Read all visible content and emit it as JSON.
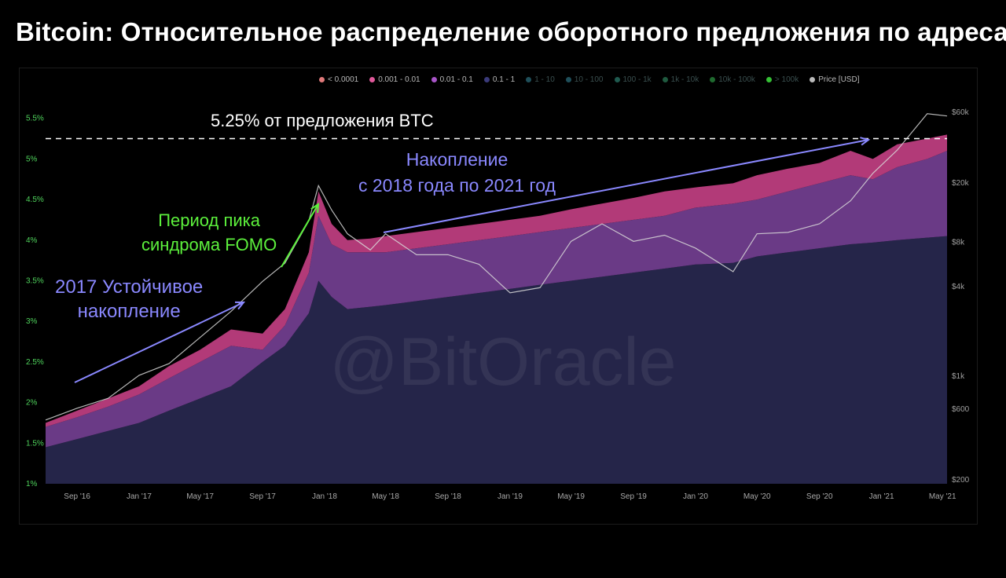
{
  "title": "Bitcoin: Относительное распределение оборотного предложения по адресам",
  "watermark": "@BitOracle",
  "legend": [
    {
      "label": "< 0.0001",
      "color": "#e0797a",
      "dim": false
    },
    {
      "label": "0.001 - 0.01",
      "color": "#e0589a",
      "dim": false
    },
    {
      "label": "0.01 - 0.1",
      "color": "#a855c8",
      "dim": false
    },
    {
      "label": "0.1 - 1",
      "color": "#3a3a7a",
      "dim": false
    },
    {
      "label": "1 - 10",
      "color": "#1f4f5a",
      "dim": true
    },
    {
      "label": "10 - 100",
      "color": "#1f4f5a",
      "dim": true
    },
    {
      "label": "100 - 1k",
      "color": "#1f5a4f",
      "dim": true
    },
    {
      "label": "1k - 10k",
      "color": "#1f5a3f",
      "dim": true
    },
    {
      "label": "10k - 100k",
      "color": "#1f6a2f",
      "dim": true
    },
    {
      "label": "> 100k",
      "color": "#35c035",
      "dim": true
    },
    {
      "label": "Price [USD]",
      "color": "#bbbbbb",
      "dim": false
    }
  ],
  "annotations": {
    "line_label": "5.25% от предложения BTC",
    "accum_2017_line1": "2017 Устойчивое",
    "accum_2017_line2": "накопление",
    "fomo_line1": "Период пика",
    "fomo_line2": "синдрома FOMO",
    "accum_2018_line1": "Накопление",
    "accum_2018_line2": "с 2018 года по 2021 год"
  },
  "colors": {
    "band_small": "#b23a78",
    "band_mid": "#6a3a86",
    "band_base": "#252549",
    "price": "#d8d8d8",
    "annot_purple": "#8a88ff",
    "annot_green": "#5cf03c",
    "axis_text": "#4fd35c",
    "axis_text_right": "#a0a0a0"
  },
  "chart_data": {
    "type": "area",
    "x": [
      "2016-07-01",
      "2016-09-01",
      "2016-11-01",
      "2017-01-01",
      "2017-03-01",
      "2017-05-01",
      "2017-07-01",
      "2017-09-01",
      "2017-10-15",
      "2017-12-01",
      "2017-12-20",
      "2018-01-15",
      "2018-02-15",
      "2018-04-01",
      "2018-05-01",
      "2018-07-01",
      "2018-09-01",
      "2018-11-01",
      "2019-01-01",
      "2019-03-01",
      "2019-05-01",
      "2019-07-01",
      "2019-09-01",
      "2019-11-01",
      "2020-01-01",
      "2020-03-15",
      "2020-05-01",
      "2020-07-01",
      "2020-09-01",
      "2020-11-01",
      "2020-12-15",
      "2021-02-01",
      "2021-04-01",
      "2021-05-10"
    ],
    "series": [
      {
        "values": [
          1.45,
          1.55,
          1.65,
          1.75,
          1.9,
          2.05,
          2.2,
          2.5,
          2.7,
          3.1,
          3.5,
          3.3,
          3.15,
          3.18,
          3.2,
          3.25,
          3.3,
          3.35,
          3.4,
          3.45,
          3.5,
          3.55,
          3.6,
          3.65,
          3.7,
          3.72,
          3.8,
          3.85,
          3.9,
          3.95,
          3.97,
          4.0,
          4.03,
          4.05
        ]
      },
      {
        "values": [
          1.7,
          1.82,
          1.95,
          2.1,
          2.3,
          2.5,
          2.7,
          2.65,
          2.95,
          3.6,
          4.3,
          3.95,
          3.85,
          3.85,
          3.85,
          3.9,
          3.95,
          4.0,
          4.05,
          4.1,
          4.15,
          4.2,
          4.25,
          4.3,
          4.4,
          4.45,
          4.5,
          4.6,
          4.7,
          4.8,
          4.75,
          4.9,
          5.0,
          5.1
        ]
      },
      {
        "values": [
          1.75,
          1.9,
          2.05,
          2.2,
          2.45,
          2.65,
          2.9,
          2.85,
          3.15,
          3.85,
          4.6,
          4.2,
          4.0,
          4.02,
          4.05,
          4.1,
          4.15,
          4.2,
          4.25,
          4.3,
          4.38,
          4.45,
          4.52,
          4.6,
          4.65,
          4.7,
          4.8,
          4.88,
          4.95,
          5.1,
          5.0,
          5.18,
          5.25,
          5.3
        ]
      },
      {
        "values": [
          500,
          600,
          700,
          1000,
          1200,
          1800,
          2700,
          4300,
          5700,
          11000,
          19000,
          13000,
          9000,
          7000,
          9000,
          6500,
          6500,
          5600,
          3600,
          3900,
          8000,
          10500,
          8000,
          8800,
          7200,
          5000,
          9000,
          9200,
          10500,
          15000,
          23000,
          33000,
          58000,
          56000
        ]
      }
    ],
    "reference_line": 5.25,
    "y_ticks": [
      "1%",
      "1.5%",
      "2%",
      "2.5%",
      "3%",
      "3.5%",
      "4%",
      "4.5%",
      "5%",
      "5.5%"
    ],
    "y_range": [
      1,
      5.7
    ],
    "y2_ticks": [
      "$200",
      "$600",
      "$1k",
      "$4k",
      "$8k",
      "$20k",
      "$60k"
    ],
    "x_ticks": [
      "Sep '16",
      "Jan '17",
      "May '17",
      "Sep '17",
      "Jan '18",
      "May '18",
      "Sep '18",
      "Jan '19",
      "May '19",
      "Sep '19",
      "Jan '20",
      "May '20",
      "Sep '20",
      "Jan '21",
      "May '21"
    ],
    "legend_position": "top-right"
  }
}
